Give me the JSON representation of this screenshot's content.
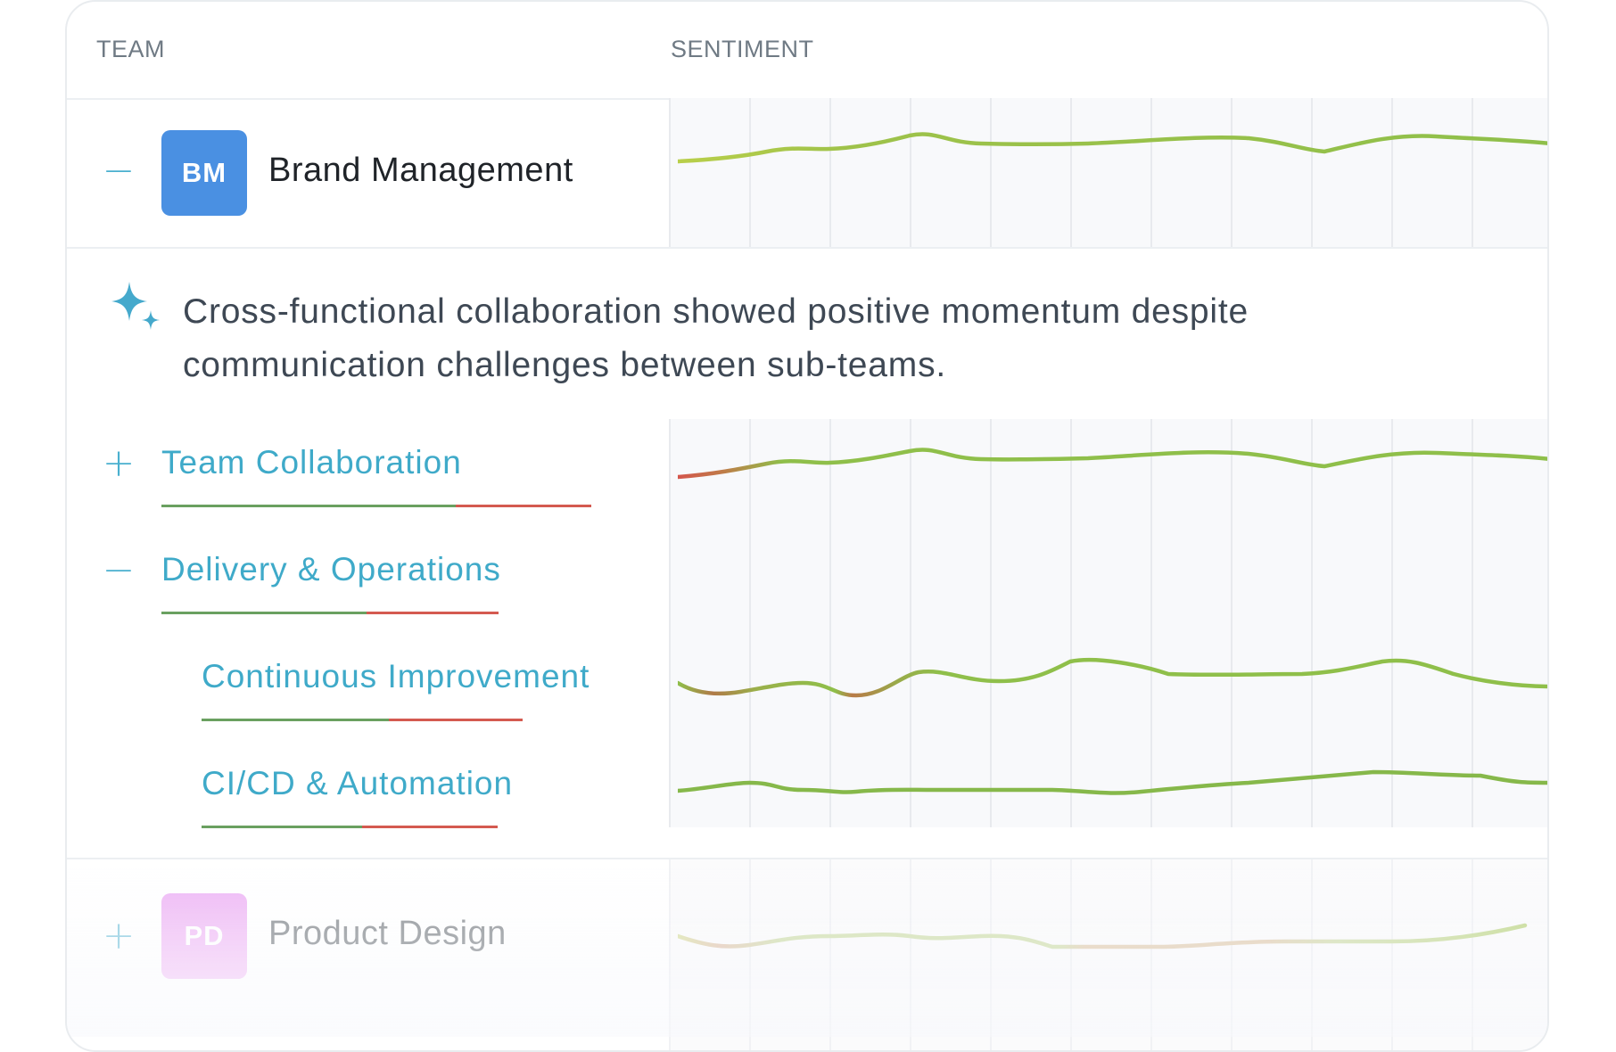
{
  "header": {
    "team_label": "TEAM",
    "sentiment_label": "SENTIMENT"
  },
  "colors": {
    "accent": "#4ab0cf",
    "positive": "#8fbf4a",
    "negative": "#d45a50",
    "bm_avatar": "#4a90e2",
    "pd_avatar": "#e58cf0"
  },
  "teams": [
    {
      "initials": "BM",
      "name": "Brand Management",
      "expanded": true,
      "toggle_icon": "minus-icon",
      "summary_icon": "sparkle-icon",
      "summary": "Cross-functional collaboration showed positive momentum despite communication challenges between sub-teams.",
      "sub_teams": [
        {
          "label": "Team Collaboration",
          "expanded": false,
          "toggle_icon": "plus-icon",
          "positive_share": 0.68
        },
        {
          "label": "Delivery & Operations",
          "expanded": true,
          "toggle_icon": "minus-icon",
          "positive_share": 0.6,
          "children": [
            {
              "label": "Continuous Improvement",
              "positive_share": 0.58
            },
            {
              "label": "CI/CD & Automation",
              "positive_share": 0.54
            }
          ]
        }
      ]
    },
    {
      "initials": "PD",
      "name": "Product Design",
      "expanded": false,
      "toggle_icon": "plus-icon"
    }
  ]
}
